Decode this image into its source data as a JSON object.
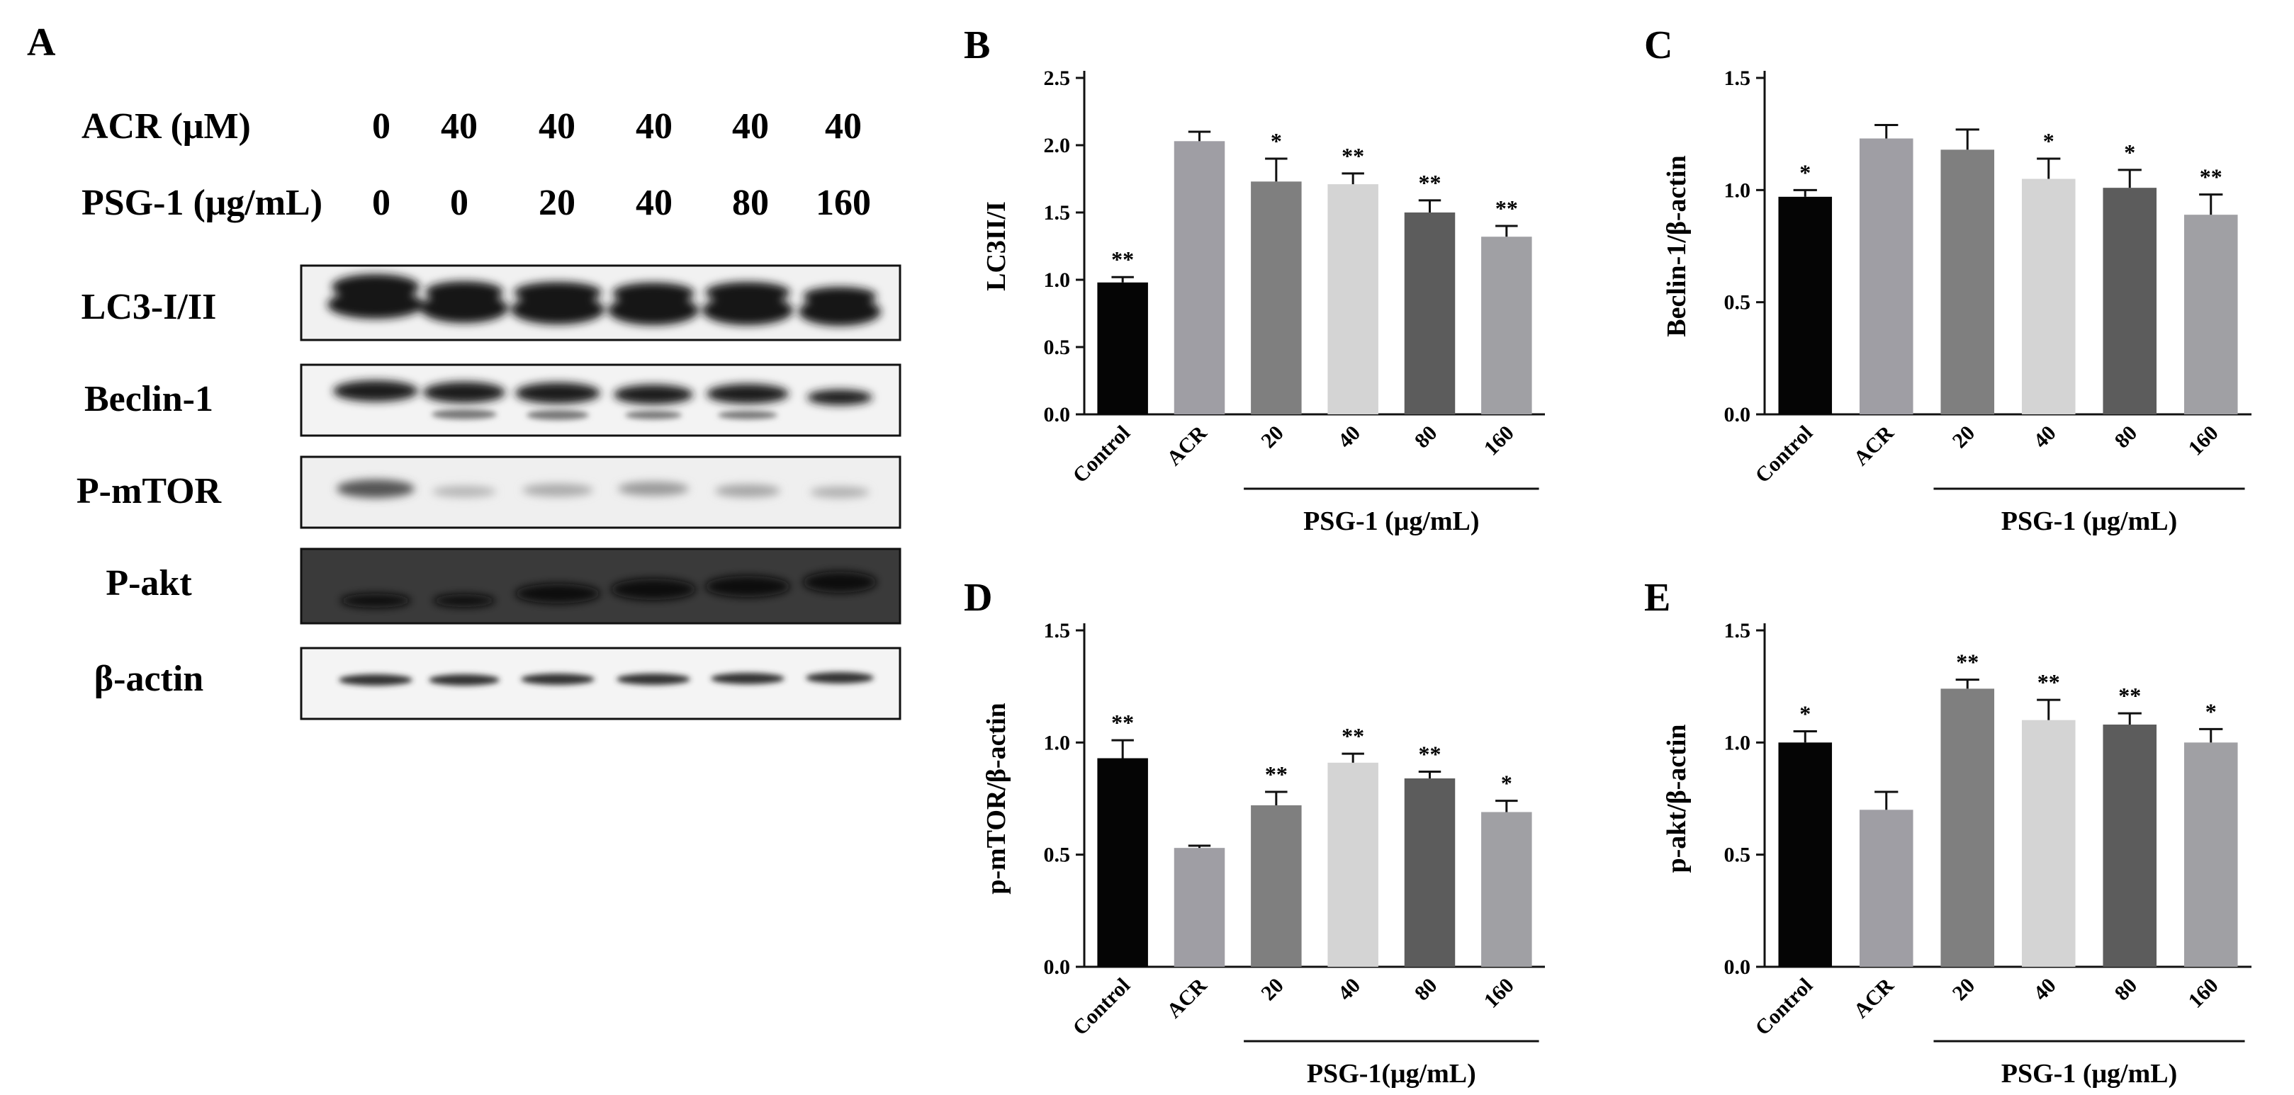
{
  "panel_a": {
    "label": "A",
    "rows": [
      {
        "label": "ACR (μM)",
        "values": [
          "0",
          "40",
          "40",
          "40",
          "40",
          "40"
        ]
      },
      {
        "label": "PSG-1 (μg/mL)",
        "values": [
          "0",
          "0",
          "20",
          "40",
          "80",
          "160"
        ]
      }
    ],
    "blots": [
      "LC3-I/II",
      "Beclin-1",
      "P-mTOR",
      "P-akt",
      "β-actin"
    ]
  },
  "chart_data": [
    {
      "panel": "B",
      "type": "bar",
      "categories": [
        "Control",
        "ACR",
        "20",
        "40",
        "80",
        "160"
      ],
      "values": [
        0.98,
        2.03,
        1.73,
        1.71,
        1.5,
        1.32
      ],
      "errors": [
        0.04,
        0.07,
        0.17,
        0.08,
        0.09,
        0.08
      ],
      "significance": [
        "**",
        "",
        "*",
        "**",
        "**",
        "**"
      ],
      "ylabel": "LC3II/I",
      "ylim": [
        0,
        2.5
      ],
      "yticks": [
        "0.0",
        "0.5",
        "1.0",
        "1.5",
        "2.0",
        "2.5"
      ],
      "group_label": "PSG-1 (μg/mL)"
    },
    {
      "panel": "C",
      "type": "bar",
      "categories": [
        "Control",
        "ACR",
        "20",
        "40",
        "80",
        "160"
      ],
      "values": [
        0.97,
        1.23,
        1.18,
        1.05,
        1.01,
        0.89
      ],
      "errors": [
        0.03,
        0.06,
        0.09,
        0.09,
        0.08,
        0.09
      ],
      "significance": [
        "*",
        "",
        "",
        "*",
        "*",
        "**"
      ],
      "ylabel": "Beclin-1/β-actin",
      "ylim": [
        0,
        1.5
      ],
      "yticks": [
        "0.0",
        "0.5",
        "1.0",
        "1.5"
      ],
      "group_label": "PSG-1 (μg/mL)"
    },
    {
      "panel": "D",
      "type": "bar",
      "categories": [
        "Control",
        "ACR",
        "20",
        "40",
        "80",
        "160"
      ],
      "values": [
        0.93,
        0.53,
        0.72,
        0.91,
        0.84,
        0.69
      ],
      "errors": [
        0.08,
        0.01,
        0.06,
        0.04,
        0.03,
        0.05
      ],
      "significance": [
        "**",
        "",
        "**",
        "**",
        "**",
        "*"
      ],
      "ylabel": "p-mTOR/β-actin",
      "ylim": [
        0,
        1.5
      ],
      "yticks": [
        "0.0",
        "0.5",
        "1.0",
        "1.5"
      ],
      "group_label": "PSG-1(μg/mL)"
    },
    {
      "panel": "E",
      "type": "bar",
      "categories": [
        "Control",
        "ACR",
        "20",
        "40",
        "80",
        "160"
      ],
      "values": [
        1.0,
        0.7,
        1.24,
        1.1,
        1.08,
        1.0
      ],
      "errors": [
        0.05,
        0.08,
        0.04,
        0.09,
        0.05,
        0.06
      ],
      "significance": [
        "*",
        "",
        "**",
        "**",
        "**",
        "*"
      ],
      "ylabel": "p-akt/β-actin",
      "ylim": [
        0,
        1.5
      ],
      "yticks": [
        "0.0",
        "0.5",
        "1.0",
        "1.5"
      ],
      "group_label": "PSG-1 (μg/mL)"
    }
  ],
  "colors": [
    "#050505",
    "#9f9ea4",
    "#7f7f7f",
    "#d4d4d4",
    "#5c5c5c",
    "#a0a0a4"
  ]
}
